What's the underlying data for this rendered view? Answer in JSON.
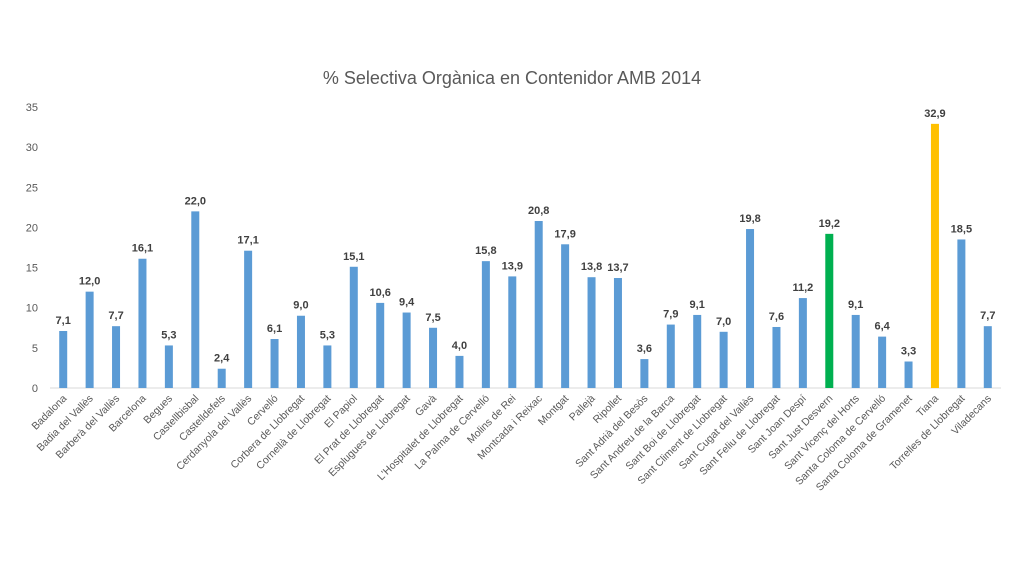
{
  "chart_data": {
    "type": "bar",
    "title": "% Selectiva Orgànica en Contenidor AMB 2014",
    "xlabel": "",
    "ylabel": "",
    "ylim": [
      0,
      35
    ],
    "yticks": [
      0,
      5,
      10,
      15,
      20,
      25,
      30,
      35
    ],
    "grid": false,
    "legend": "none",
    "categories": [
      "Badalona",
      "Badia del Vallès",
      "Barberà del Vallès",
      "Barcelona",
      "Begues",
      "Castellbisbal",
      "Castelldefels",
      "Cerdanyola del Vallès",
      "Cervelló",
      "Corbera de Llobregat",
      "Cornellà de Llobregat",
      "El Papiol",
      "El Prat de Llobregat",
      "Esplugues de Llobregat",
      "Gavà",
      "L'Hospitalet de Llobregat",
      "La Palma de Cervelló",
      "Molins de Rei",
      "Montcada i Reixac",
      "Montgat",
      "Pallejà",
      "Ripollet",
      "Sant Adrià del Besòs",
      "Sant Andreu de la Barca",
      "Sant Boi de Llobregat",
      "Sant Climent de Llobregat",
      "Sant Cugat del Vallès",
      "Sant Feliu de Llobregat",
      "Sant Joan Despí",
      "Sant Just Desvern",
      "Sant Vicenç del Horts",
      "Santa Coloma de Cervelló",
      "Santa Coloma de Gramenet",
      "Tiana",
      "Torrelles de Llobregat",
      "Viladecans"
    ],
    "values": [
      7.1,
      12.0,
      7.7,
      16.1,
      5.3,
      22.0,
      2.4,
      17.1,
      6.1,
      9.0,
      5.3,
      15.1,
      10.6,
      9.4,
      7.5,
      4.0,
      15.8,
      13.9,
      20.8,
      17.9,
      13.8,
      13.7,
      3.6,
      7.9,
      9.1,
      7.0,
      19.8,
      7.6,
      11.2,
      19.2,
      9.1,
      6.4,
      3.3,
      32.9,
      18.5,
      7.7
    ],
    "value_labels": [
      "7,1",
      "12,0",
      "7,7",
      "16,1",
      "5,3",
      "22,0",
      "2,4",
      "17,1",
      "6,1",
      "9,0",
      "5,3",
      "15,1",
      "10,6",
      "9,4",
      "7,5",
      "4,0",
      "15,8",
      "13,9",
      "20,8",
      "17,9",
      "13,8",
      "13,7",
      "3,6",
      "7,9",
      "9,1",
      "7,0",
      "19,8",
      "7,6",
      "11,2",
      "19,2",
      "9,1",
      "6,4",
      "3,3",
      "32,9",
      "18,5",
      "7,7"
    ],
    "colors": {
      "default": "#5b9bd5",
      "highlight_green": "#00b050",
      "highlight_gold": "#ffc000",
      "axis_text": "#595959"
    },
    "highlights": {
      "Sant Just Desvern": "#00b050",
      "Tiana": "#ffc000"
    }
  }
}
